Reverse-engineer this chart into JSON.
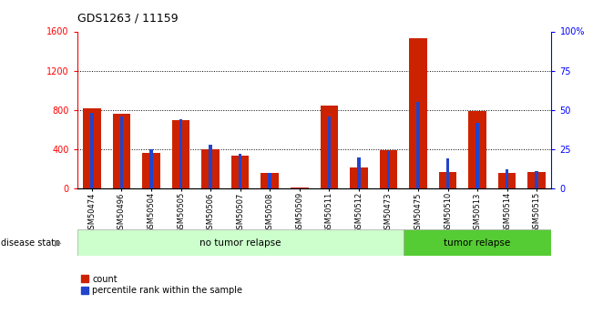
{
  "title": "GDS1263 / 11159",
  "samples": [
    "GSM50474",
    "GSM50496",
    "GSM50504",
    "GSM50505",
    "GSM50506",
    "GSM50507",
    "GSM50508",
    "GSM50509",
    "GSM50511",
    "GSM50512",
    "GSM50473",
    "GSM50475",
    "GSM50510",
    "GSM50513",
    "GSM50514",
    "GSM50515"
  ],
  "count_values": [
    820,
    760,
    360,
    700,
    400,
    330,
    160,
    5,
    840,
    210,
    390,
    1530,
    170,
    790,
    155,
    165
  ],
  "percentile_values": [
    48,
    46,
    25,
    44,
    28,
    22,
    10,
    0,
    46,
    20,
    24,
    55,
    19,
    42,
    12,
    11
  ],
  "no_tumor_count": 11,
  "tumor_relapse_count": 5,
  "left_ylim": [
    0,
    1600
  ],
  "right_ylim": [
    0,
    100
  ],
  "left_yticks": [
    0,
    400,
    800,
    1200,
    1600
  ],
  "right_yticks": [
    0,
    25,
    50,
    75,
    100
  ],
  "right_yticklabels": [
    "0",
    "25",
    "50",
    "75",
    "100%"
  ],
  "bar_color": "#cc2200",
  "blue_color": "#2244cc",
  "no_tumor_bg": "#ccffcc",
  "tumor_bg": "#55cc33",
  "group_label_no_tumor": "no tumor relapse",
  "group_label_tumor": "tumor relapse",
  "disease_state_label": "disease state",
  "legend_count": "count",
  "legend_percentile": "percentile rank within the sample",
  "background_color": "white",
  "fig_width": 6.51,
  "fig_height": 3.45,
  "dpi": 100
}
